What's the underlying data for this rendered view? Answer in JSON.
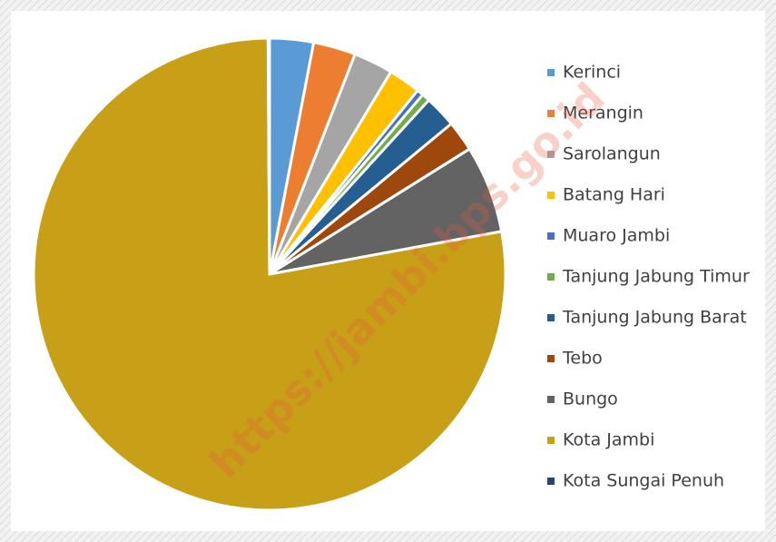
{
  "chart_data": {
    "type": "pie",
    "watermark": "https://jambi.bps.go.id",
    "categories": [
      "Kerinci",
      "Merangin",
      "Sarolangun",
      "Batang Hari",
      "Muaro Jambi",
      "Tanjung Jabung Timur",
      "Tanjung Jabung Barat",
      "Tebo",
      "Bungo",
      "Kota Jambi",
      "Kota Sungai Penuh"
    ],
    "values": [
      3.0,
      2.9,
      2.7,
      2.2,
      0.45,
      0.55,
      2.2,
      2.1,
      6.0,
      77.8,
      0.1
    ],
    "colors": [
      "#5b9bd5",
      "#ed7d31",
      "#a5a5a5",
      "#ffc000",
      "#4472c4",
      "#70ad47",
      "#255e91",
      "#9e480e",
      "#636363",
      "#c8a017",
      "#264478"
    ],
    "legend": "right"
  }
}
